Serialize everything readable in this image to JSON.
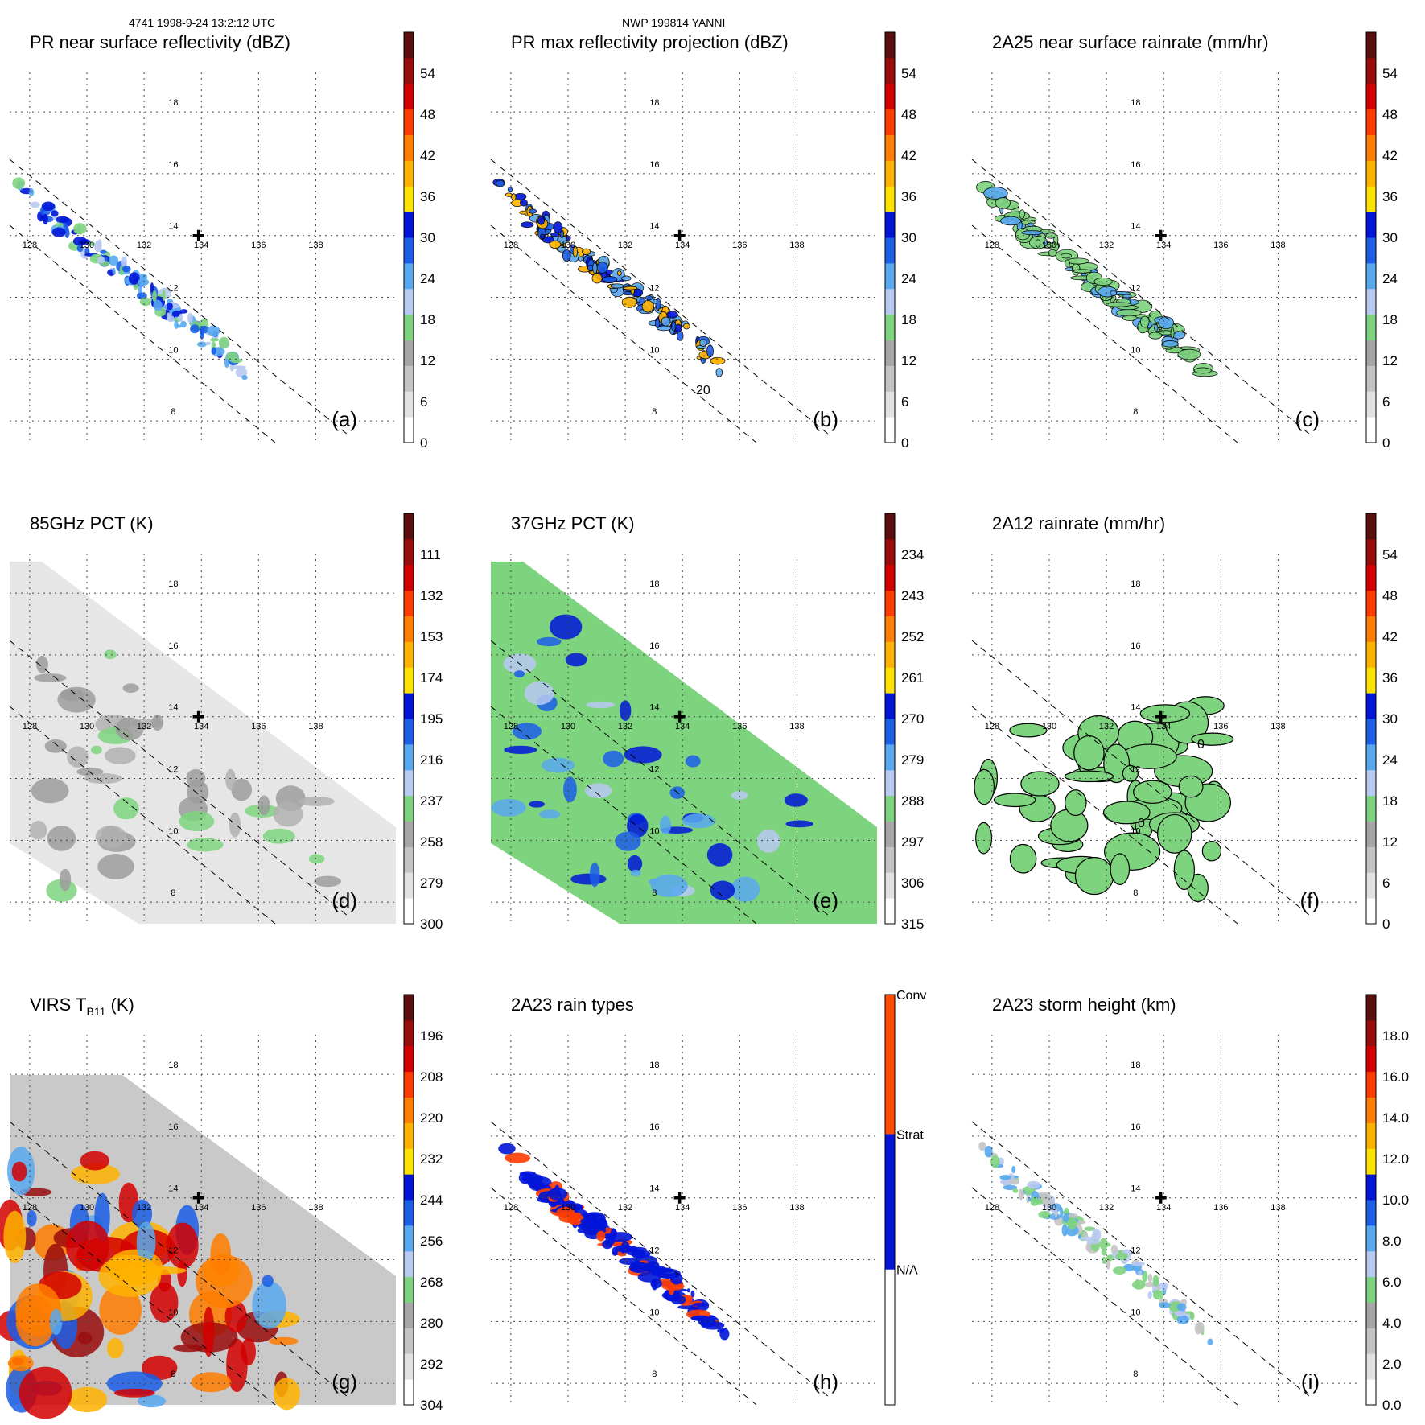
{
  "header": {
    "left": "4741 1998-9-24 13:2:12 UTC",
    "center": "NWP 199814 YANNI"
  },
  "chart_data": [
    {
      "type": "heatmap",
      "panel": "(a)",
      "title": "PR near surface reflectivity (dBZ)",
      "x_ticks": [
        "128",
        "130",
        "132",
        "134",
        "136",
        "138"
      ],
      "y_ticks": [
        "8",
        "10",
        "12",
        "14",
        "16",
        "18"
      ],
      "colorbar": {
        "ticks": [
          "0",
          "6",
          "12",
          "18",
          "24",
          "30",
          "36",
          "42",
          "48",
          "54"
        ],
        "range": [
          0,
          60
        ]
      }
    },
    {
      "type": "heatmap",
      "panel": "(b)",
      "title": "PR max reflectivity projection (dBZ)",
      "x_ticks": [
        "128",
        "130",
        "132",
        "134",
        "136",
        "138"
      ],
      "y_ticks": [
        "8",
        "10",
        "12",
        "14",
        "16",
        "18"
      ],
      "colorbar": {
        "ticks": [
          "0",
          "6",
          "12",
          "18",
          "24",
          "30",
          "36",
          "42",
          "48",
          "54"
        ],
        "range": [
          0,
          60
        ]
      },
      "contour_label": "20"
    },
    {
      "type": "heatmap",
      "panel": "(c)",
      "title": "2A25 near surface rainrate (mm/hr)",
      "x_ticks": [
        "128",
        "130",
        "132",
        "134",
        "136",
        "138"
      ],
      "y_ticks": [
        "8",
        "10",
        "12",
        "14",
        "16",
        "18"
      ],
      "colorbar": {
        "ticks": [
          "0",
          "6",
          "12",
          "18",
          "24",
          "30",
          "36",
          "42",
          "48",
          "54"
        ],
        "range": [
          0,
          60
        ]
      }
    },
    {
      "type": "heatmap",
      "panel": "(d)",
      "title": "85GHz PCT (K)",
      "x_ticks": [
        "128",
        "130",
        "132",
        "134",
        "136",
        "138"
      ],
      "y_ticks": [
        "8",
        "10",
        "12",
        "14",
        "16",
        "18"
      ],
      "colorbar": {
        "ticks": [
          "300",
          "279",
          "258",
          "237",
          "216",
          "195",
          "174",
          "153",
          "132",
          "111"
        ],
        "range": [
          300,
          90
        ]
      }
    },
    {
      "type": "heatmap",
      "panel": "(e)",
      "title": "37GHz PCT (K)",
      "x_ticks": [
        "128",
        "130",
        "132",
        "134",
        "136",
        "138"
      ],
      "y_ticks": [
        "8",
        "10",
        "12",
        "14",
        "16",
        "18"
      ],
      "colorbar": {
        "ticks": [
          "315",
          "306",
          "297",
          "288",
          "279",
          "270",
          "261",
          "252",
          "243",
          "234"
        ],
        "range": [
          315,
          225
        ]
      }
    },
    {
      "type": "heatmap",
      "panel": "(f)",
      "title": "2A12 rainrate (mm/hr)",
      "x_ticks": [
        "128",
        "130",
        "132",
        "134",
        "136",
        "138"
      ],
      "y_ticks": [
        "8",
        "10",
        "12",
        "14",
        "16",
        "18"
      ],
      "colorbar": {
        "ticks": [
          "0",
          "6",
          "12",
          "18",
          "24",
          "30",
          "36",
          "42",
          "48",
          "54"
        ],
        "range": [
          0,
          60
        ]
      },
      "contour_labels": [
        "0",
        "0"
      ]
    },
    {
      "type": "heatmap",
      "panel": "(g)",
      "title_main": "VIRS T",
      "title_sub": "B11",
      "title_unit": " (K)",
      "x_ticks": [
        "128",
        "130",
        "132",
        "134",
        "136",
        "138"
      ],
      "y_ticks": [
        "8",
        "10",
        "12",
        "14",
        "16",
        "18"
      ],
      "colorbar": {
        "ticks": [
          "304",
          "292",
          "280",
          "268",
          "256",
          "244",
          "232",
          "220",
          "208",
          "196"
        ],
        "range": [
          304,
          184
        ]
      }
    },
    {
      "type": "heatmap",
      "panel": "(h)",
      "title": "2A23 rain types",
      "x_ticks": [
        "128",
        "130",
        "132",
        "134",
        "136",
        "138"
      ],
      "y_ticks": [
        "8",
        "10",
        "12",
        "14",
        "16",
        "18"
      ],
      "colorbar": {
        "categories": [
          "N/A",
          "Strat",
          "Conv"
        ]
      }
    },
    {
      "type": "heatmap",
      "panel": "(i)",
      "title": "2A23 storm height (km)",
      "x_ticks": [
        "128",
        "130",
        "132",
        "134",
        "136",
        "138"
      ],
      "y_ticks": [
        "8",
        "10",
        "12",
        "14",
        "16",
        "18"
      ],
      "colorbar": {
        "ticks": [
          "0.0",
          "2.0",
          "4.0",
          "6.0",
          "8.0",
          "10.0",
          "12.0",
          "14.0",
          "16.0",
          "18.0"
        ],
        "range": [
          0,
          20
        ]
      }
    }
  ]
}
